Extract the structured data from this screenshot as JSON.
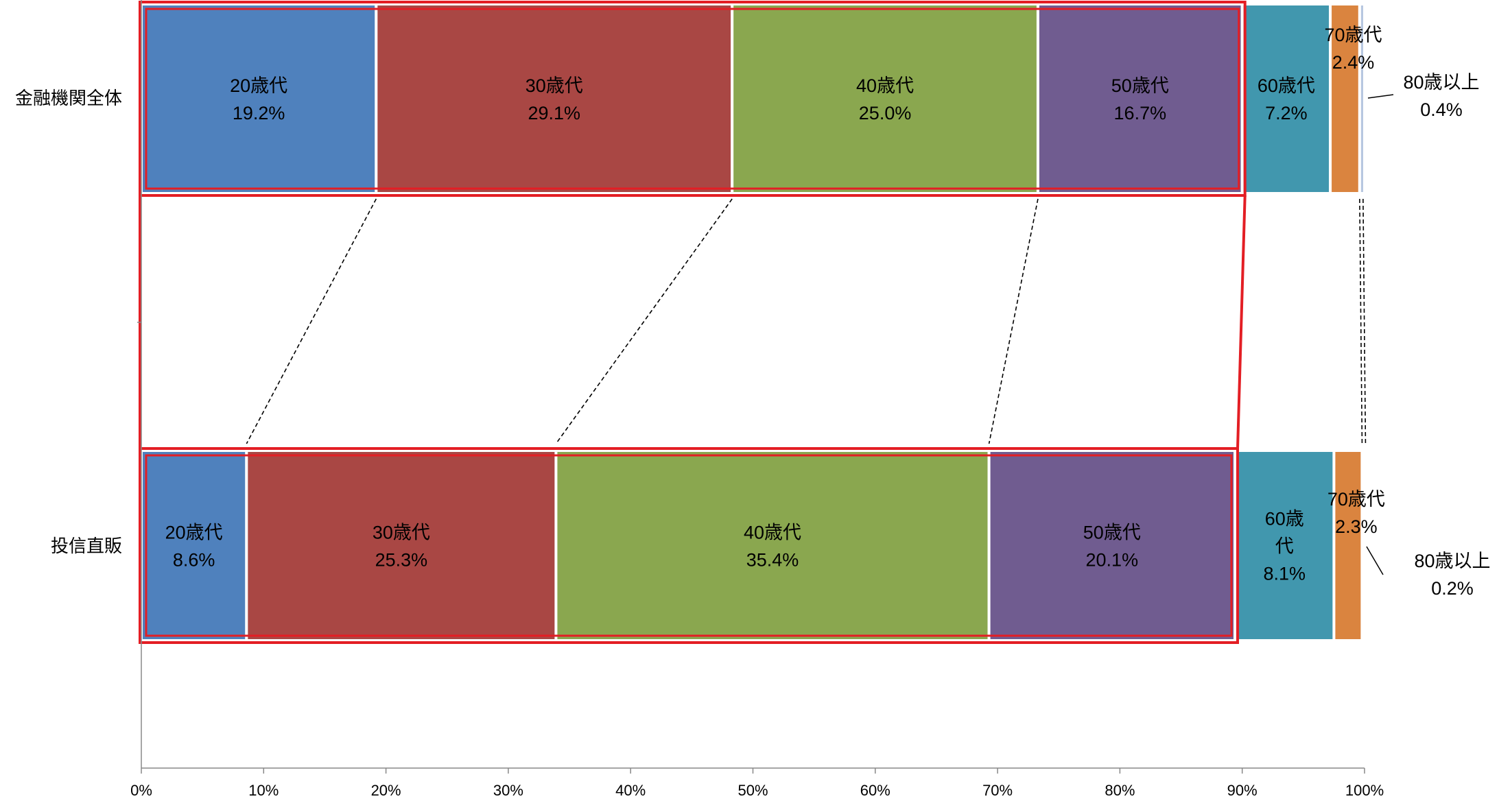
{
  "chart_data": {
    "type": "bar",
    "orientation": "horizontal",
    "stacked": "100%",
    "categories": [
      "金融機関全体",
      "投信直販"
    ],
    "series": [
      {
        "name": "20歳代",
        "values": [
          19.2,
          8.6
        ],
        "color": "#4F81BD"
      },
      {
        "name": "30歳代",
        "values": [
          29.1,
          25.3
        ],
        "color": "#A94744"
      },
      {
        "name": "40歳代",
        "values": [
          25.0,
          35.4
        ],
        "color": "#8AA74F"
      },
      {
        "name": "50歳代",
        "values": [
          16.7,
          20.1
        ],
        "color": "#705C90"
      },
      {
        "name": "60歳代",
        "values": [
          7.2,
          8.1
        ],
        "color": "#4197AE"
      },
      {
        "name": "70歳代",
        "values": [
          2.4,
          2.3
        ],
        "color": "#DA843F"
      },
      {
        "name": "80歳以上",
        "values": [
          0.4,
          0.2
        ],
        "color": "#B7C7E0"
      }
    ],
    "data_labels": [
      [
        {
          "lines": [
            "20歳代",
            "19.2%"
          ]
        },
        {
          "lines": [
            "30歳代",
            "29.1%"
          ]
        },
        {
          "lines": [
            "40歳代",
            "25.0%"
          ]
        },
        {
          "lines": [
            "50歳代",
            "16.7%"
          ]
        },
        {
          "lines": [
            "60歳代",
            "7.2%"
          ]
        },
        {
          "lines": [
            "70歳代",
            "2.4%"
          ]
        },
        {
          "lines": [
            "80歳以上",
            "0.4%"
          ]
        }
      ],
      [
        {
          "lines": [
            "20歳代",
            "8.6%"
          ]
        },
        {
          "lines": [
            "30歳代",
            "25.3%"
          ]
        },
        {
          "lines": [
            "40歳代",
            "35.4%"
          ]
        },
        {
          "lines": [
            "50歳代",
            "20.1%"
          ]
        },
        {
          "lines": [
            "60歳",
            "代",
            "8.1%"
          ]
        },
        {
          "lines": [
            "70歳代",
            "2.3%"
          ]
        },
        {
          "lines": [
            "80歳以上",
            "0.2%"
          ]
        }
      ]
    ],
    "xlim": [
      0,
      100
    ],
    "xticks": [
      "0%",
      "10%",
      "20%",
      "30%",
      "40%",
      "50%",
      "60%",
      "70%",
      "80%",
      "90%",
      "100%"
    ],
    "highlight_series": [
      "20歳代",
      "30歳代",
      "40歳代",
      "50歳代"
    ],
    "highlight_color": "#E31E24",
    "grid": false,
    "legend": "none"
  }
}
